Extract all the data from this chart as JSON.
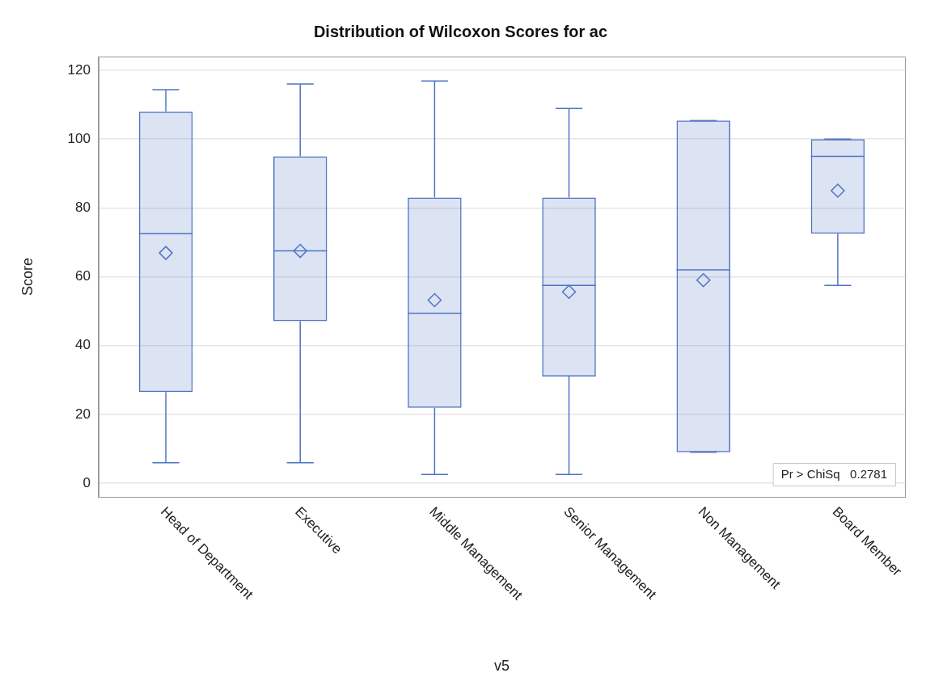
{
  "chart_data": {
    "type": "box",
    "title": "Distribution of Wilcoxon Scores for ac",
    "xlabel": "v5",
    "ylabel": "Score",
    "categories": [
      "Head of Department",
      "Executive",
      "Middle Management",
      "Senior Management",
      "Non Management",
      "Board Member"
    ],
    "series": [
      {
        "color": "#4f74c4",
        "boxes": [
          {
            "low": 5.9,
            "q1": 26.5,
            "median": 72.5,
            "q3": 108,
            "high": 114.4,
            "mean": 66.9
          },
          {
            "low": 5.9,
            "q1": 47.1,
            "median": 67.5,
            "q3": 95,
            "high": 116,
            "mean": 67.5
          },
          {
            "low": 2.5,
            "q1": 21.9,
            "median": 49.4,
            "q3": 83,
            "high": 116.9,
            "mean": 53.2
          },
          {
            "low": 2.5,
            "q1": 31,
            "median": 57.5,
            "q3": 83,
            "high": 108.9,
            "mean": 55.6
          },
          {
            "low": 9,
            "q1": 9,
            "median": 62,
            "q3": 105.4,
            "high": 105.4,
            "mean": 59
          },
          {
            "low": 57.5,
            "q1": 72.5,
            "median": 95,
            "q3": 100,
            "high": 100,
            "mean": 85
          }
        ]
      }
    ],
    "ylim": [
      -4,
      124
    ],
    "yticks": [
      0,
      20,
      40,
      60,
      80,
      100,
      120
    ],
    "grid": "y",
    "marker": "diamond",
    "annotations": [
      "Pr > ChiSq   0.2781"
    ]
  }
}
